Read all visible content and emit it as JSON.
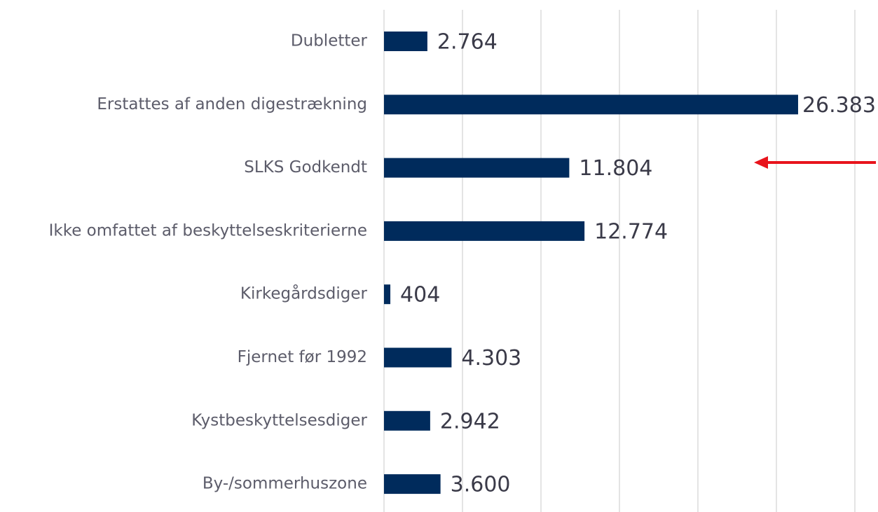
{
  "chart_data": {
    "type": "bar",
    "orientation": "horizontal",
    "categories": [
      "Dubletter",
      "Erstattes af anden digestrækning",
      "SLKS Godkendt",
      "Ikke omfattet af beskyttelseskriterierne",
      "Kirkegårdsdiger",
      "Fjernet før 1992",
      "Kystbeskyttelsesdiger",
      "By-/sommerhuszone"
    ],
    "values": [
      2764,
      26383,
      11804,
      12774,
      404,
      4303,
      2942,
      3600
    ],
    "value_labels": [
      "2.764",
      "26.383",
      "11.804",
      "12.774",
      "404",
      "4.303",
      "2.942",
      "3.600"
    ],
    "color": "#002b5c",
    "xlim": [
      0,
      30000
    ],
    "xticks": [
      0,
      5000,
      10000,
      15000,
      20000,
      25000,
      30000
    ],
    "grid": true
  }
}
